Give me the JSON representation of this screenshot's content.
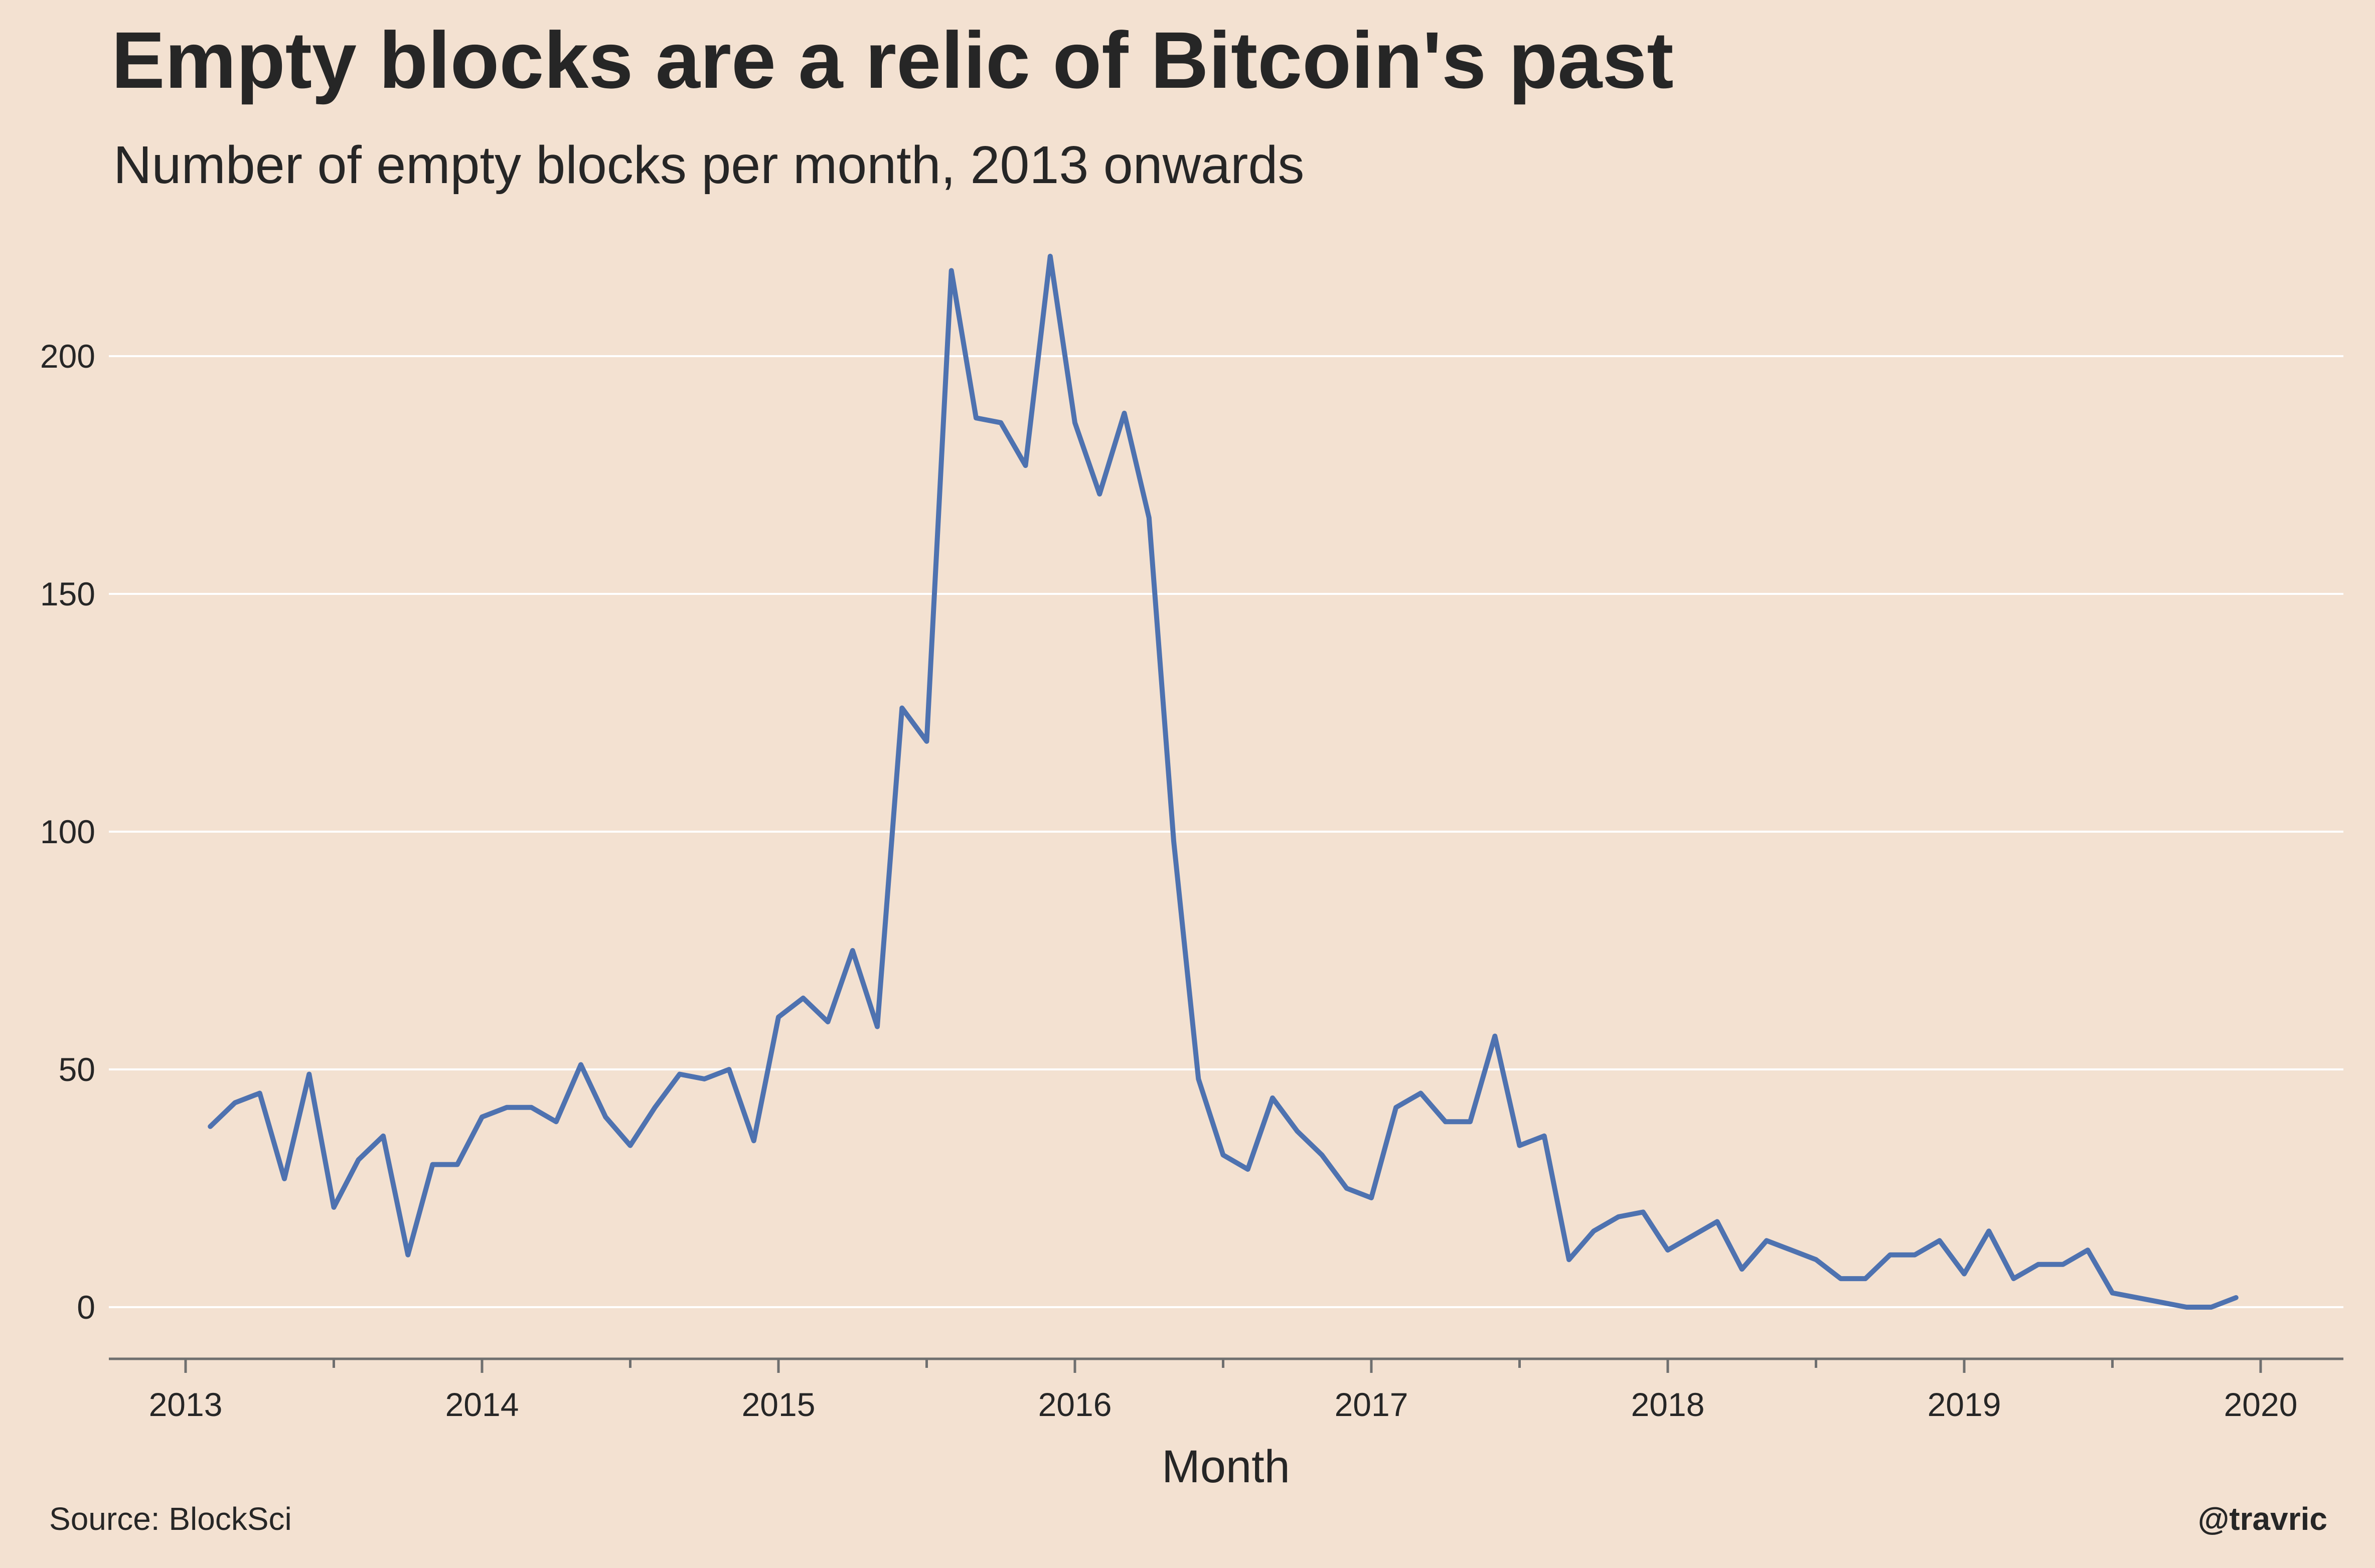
{
  "header": {
    "title": "Empty blocks are a relic of Bitcoin's past",
    "subtitle": "Number of empty blocks per month, 2013 onwards"
  },
  "footer": {
    "source": "Source: BlockSci",
    "credit": "@travric"
  },
  "colors": {
    "background": "#f3e1d1",
    "line": "#4e72b0",
    "grid": "#ffffff",
    "axis": "#6f6f6f",
    "text": "#262626"
  },
  "chart_data": {
    "type": "line",
    "title": "Empty blocks are a relic of Bitcoin's past",
    "subtitle": "Number of empty blocks per month, 2013 onwards",
    "xlabel": "Month",
    "ylabel": "",
    "xlim": [
      2012.75,
      2020.25
    ],
    "ylim": [
      -11,
      220
    ],
    "x_ticks": [
      2013,
      2014,
      2015,
      2016,
      2017,
      2018,
      2019,
      2020
    ],
    "x_tick_labels": [
      "2013",
      "2014",
      "2015",
      "2016",
      "2017",
      "2018",
      "2019",
      "2020"
    ],
    "y_ticks": [
      0,
      50,
      100,
      150,
      200
    ],
    "y_tick_labels": [
      "0",
      "50",
      "100",
      "150",
      "200"
    ],
    "grid": "horizontal",
    "legend": "none",
    "series": [
      {
        "x": [
          "2013-02",
          "2013-03",
          "2013-04",
          "2013-05",
          "2013-06",
          "2013-07",
          "2013-08",
          "2013-09",
          "2013-10",
          "2013-11",
          "2013-12",
          "2014-01",
          "2014-02",
          "2014-03",
          "2014-04",
          "2014-05",
          "2014-06",
          "2014-07",
          "2014-08",
          "2014-09",
          "2014-10",
          "2014-11",
          "2014-12",
          "2015-01",
          "2015-02",
          "2015-03",
          "2015-04",
          "2015-05",
          "2015-06",
          "2015-07",
          "2015-08",
          "2015-09",
          "2015-10",
          "2015-11",
          "2015-12",
          "2016-01",
          "2016-02",
          "2016-03",
          "2016-04",
          "2016-05",
          "2016-06",
          "2016-07",
          "2016-08",
          "2016-09",
          "2016-10",
          "2016-11",
          "2016-12",
          "2017-01",
          "2017-02",
          "2017-03",
          "2017-04",
          "2017-05",
          "2017-06",
          "2017-07",
          "2017-08",
          "2017-09",
          "2017-10",
          "2017-11",
          "2017-12",
          "2018-01",
          "2018-02",
          "2018-03",
          "2018-04",
          "2018-05",
          "2018-06",
          "2018-07",
          "2018-08",
          "2018-09",
          "2018-10",
          "2018-11",
          "2018-12",
          "2019-01",
          "2019-02",
          "2019-03",
          "2019-04",
          "2019-05",
          "2019-06",
          "2019-07",
          "2019-10",
          "2019-11",
          "2019-12"
        ],
        "values": [
          38,
          43,
          45,
          27,
          49,
          21,
          31,
          36,
          11,
          30,
          30,
          40,
          42,
          42,
          39,
          51,
          40,
          34,
          42,
          49,
          48,
          50,
          35,
          61,
          65,
          60,
          75,
          59,
          126,
          119,
          218,
          187,
          186,
          177,
          221,
          186,
          171,
          188,
          166,
          98,
          48,
          32,
          29,
          44,
          37,
          32,
          25,
          23,
          42,
          45,
          39,
          39,
          57,
          34,
          36,
          10,
          16,
          19,
          20,
          12,
          15,
          18,
          8,
          14,
          12,
          10,
          6,
          6,
          11,
          11,
          14,
          7,
          16,
          6,
          9,
          9,
          12,
          3,
          0,
          0,
          2
        ]
      }
    ]
  }
}
